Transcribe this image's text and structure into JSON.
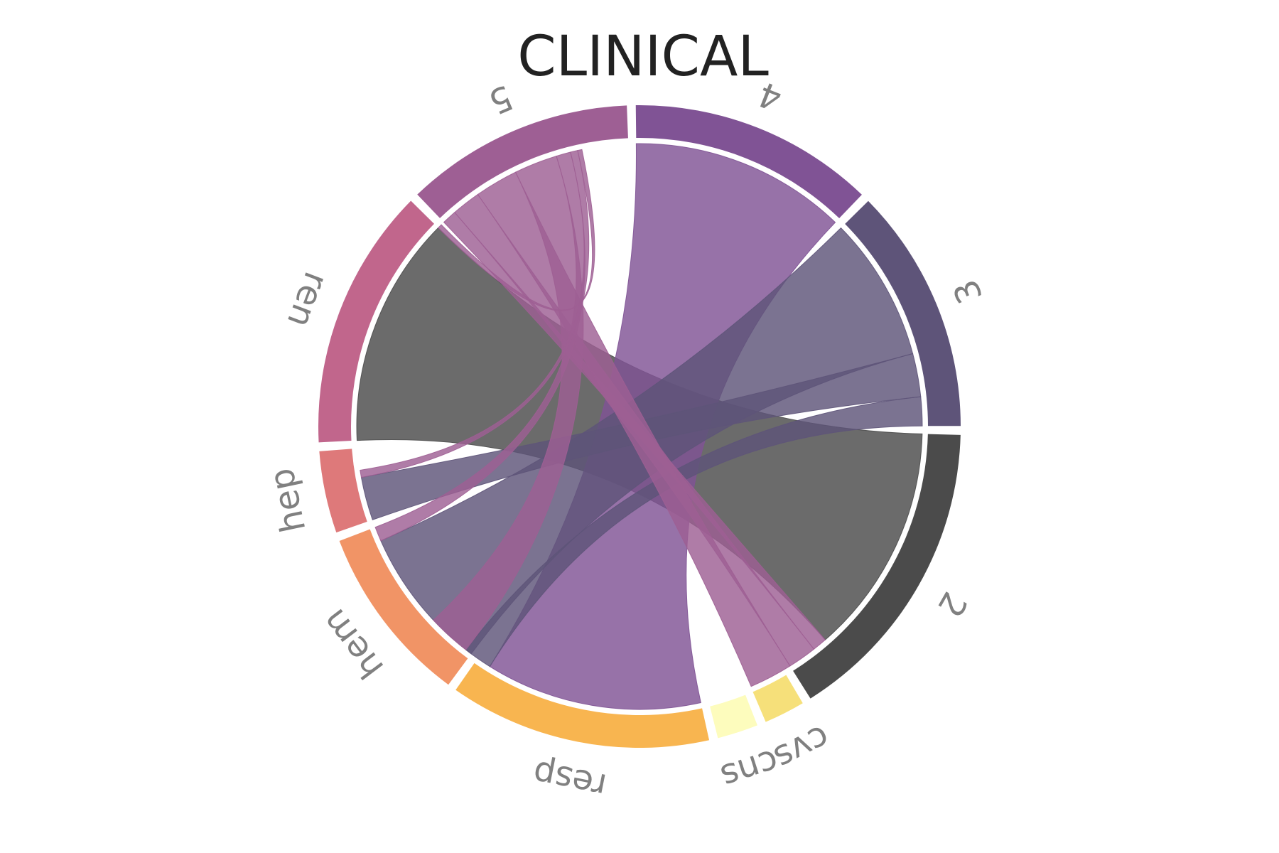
{
  "chart_data": {
    "type": "chord",
    "title": "CLINICAL",
    "segments": [
      {
        "id": "2",
        "label": "2",
        "value": 19,
        "color": "#4b4b4b"
      },
      {
        "id": "cvs",
        "label": "cvs",
        "value": 2.5,
        "color": "#f6e07a"
      },
      {
        "id": "cns",
        "label": "cns",
        "value": 2.5,
        "color": "#fdfcbd"
      },
      {
        "id": "resp",
        "label": "resp",
        "value": 16,
        "color": "#f8b550"
      },
      {
        "id": "hem",
        "label": "hem",
        "value": 11,
        "color": "#f19466"
      },
      {
        "id": "hep",
        "label": "hep",
        "value": 5,
        "color": "#de797a"
      },
      {
        "id": "ren",
        "label": "ren",
        "value": 16,
        "color": "#c1668c"
      },
      {
        "id": "5",
        "label": "5",
        "value": 14,
        "color": "#9e5f94"
      },
      {
        "id": "4",
        "label": "4",
        "value": 15,
        "color": "#805395"
      },
      {
        "id": "3",
        "label": "3",
        "value": 15,
        "color": "#5e5479"
      }
    ],
    "chords": [
      {
        "source": "2",
        "target": "ren",
        "value": 16,
        "color": "#4b4b4b"
      },
      {
        "source": "4",
        "target": "resp",
        "value": 15,
        "color": "#805395"
      },
      {
        "source": "3",
        "target": "hem",
        "value": 10,
        "color": "#5e5479"
      },
      {
        "source": "3",
        "target": "hep",
        "value": 3,
        "color": "#5e5479"
      },
      {
        "source": "3",
        "target": "resp",
        "value": 2,
        "color": "#5e5479"
      },
      {
        "source": "5",
        "target": "2",
        "value": 1,
        "color": "#9e5f94"
      },
      {
        "source": "5",
        "target": "2",
        "value": 2,
        "color": "#9e5f94"
      },
      {
        "source": "5",
        "target": "2",
        "value": 3,
        "color": "#9e5f94"
      },
      {
        "source": "5",
        "target": "resp",
        "value": 3,
        "color": "#9e5f94"
      },
      {
        "source": "5",
        "target": "hem",
        "value": 1,
        "color": "#9e5f94"
      },
      {
        "source": "5",
        "target": "hep",
        "value": 0.5,
        "color": "#9e5f94"
      },
      {
        "source": "5",
        "target": "ren",
        "value": 0.3,
        "color": "#9e5f94"
      }
    ]
  }
}
